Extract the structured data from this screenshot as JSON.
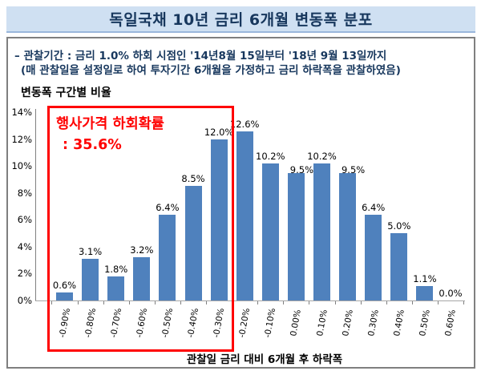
{
  "title": "독일국채 10년 금리  6개월 변동폭 분포",
  "subtitle_line1": "– 관찰기간 : 금리 1.0% 하회 시점인 '14년8월 15일부터 '18년 9월 13일까지",
  "subtitle_line2": "(매 관찰일을 설정일로 하여 투자기간 6개월을 가정하고 금리 하락폭을 관찰하였음)",
  "annotation": {
    "line1": "행사가격 하회확률",
    "line2": ": 35.6%",
    "color": "#ff0000"
  },
  "chart_data": {
    "type": "bar",
    "title": "독일국채 10년 금리 6개월 변동폭 분포",
    "ylabel": "변동폭 구간별 비율",
    "xlabel": "관찰일 금리 대비 6개월 후 하락폭",
    "categories": [
      "-0.90%",
      "-0.80%",
      "-0.70%",
      "-0.60%",
      "-0.50%",
      "-0.40%",
      "-0.30%",
      "-0.20%",
      "-0.10%",
      "0.00%",
      "0.10%",
      "0.20%",
      "0.30%",
      "0.40%",
      "0.50%",
      "0.60%"
    ],
    "values": [
      0.6,
      3.1,
      1.8,
      3.2,
      6.4,
      8.5,
      12.0,
      12.6,
      10.2,
      9.5,
      10.2,
      9.5,
      6.4,
      5.0,
      1.1,
      0.0
    ],
    "value_labels": [
      "0.6%",
      "3.1%",
      "1.8%",
      "3.2%",
      "6.4%",
      "8.5%",
      "12.0%",
      "12.6%",
      "10.2%",
      "9.5%",
      "10.2%",
      "9.5%",
      "6.4%",
      "5.0%",
      "1.1%",
      "0.0%"
    ],
    "ylim": [
      0,
      14
    ],
    "ytick_labels": [
      "0%",
      "2%",
      "4%",
      "6%",
      "8%",
      "10%",
      "12%",
      "14%"
    ],
    "grid": false,
    "legend": "none",
    "bar_color": "#4f81bd",
    "highlight_region": {
      "from_category": "-0.90%",
      "to_category": "-0.30%",
      "label": "행사가격 하회확률 : 35.6%",
      "border_color": "#ff0000"
    }
  },
  "colors": {
    "title_bg": "#cfe0f2",
    "title_text": "#17375d",
    "bar": "#4f81bd",
    "highlight": "#ff0000",
    "box_border": "#7f7f7f"
  }
}
